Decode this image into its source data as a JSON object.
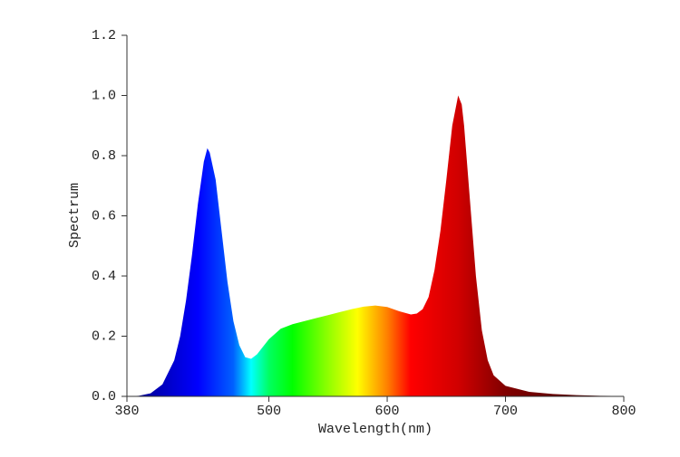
{
  "chart_data": {
    "type": "area",
    "x_label": "Wavelength(nm)",
    "y_label": "Spectrum",
    "x": [
      380,
      390,
      400,
      410,
      420,
      425,
      430,
      435,
      440,
      445,
      448,
      450,
      455,
      460,
      465,
      470,
      475,
      480,
      485,
      490,
      495,
      500,
      510,
      520,
      530,
      540,
      550,
      560,
      570,
      580,
      590,
      600,
      610,
      620,
      625,
      630,
      635,
      640,
      645,
      650,
      655,
      660,
      663,
      665,
      670,
      675,
      680,
      685,
      690,
      700,
      720,
      740,
      760,
      780,
      800
    ],
    "values": [
      0,
      0.002,
      0.01,
      0.04,
      0.12,
      0.2,
      0.32,
      0.47,
      0.64,
      0.78,
      0.825,
      0.81,
      0.72,
      0.55,
      0.38,
      0.25,
      0.17,
      0.13,
      0.125,
      0.14,
      0.165,
      0.19,
      0.225,
      0.24,
      0.25,
      0.26,
      0.27,
      0.28,
      0.29,
      0.298,
      0.302,
      0.297,
      0.283,
      0.272,
      0.275,
      0.29,
      0.33,
      0.42,
      0.55,
      0.72,
      0.9,
      1.0,
      0.97,
      0.9,
      0.65,
      0.4,
      0.22,
      0.12,
      0.07,
      0.035,
      0.015,
      0.008,
      0.004,
      0.002,
      0.001
    ],
    "xlim": [
      380,
      800
    ],
    "xticks": [
      380,
      500,
      600,
      700,
      800
    ],
    "ylim": [
      0,
      1.2
    ],
    "yticks": [
      {
        "value": 0,
        "label": "0.0"
      },
      0.2,
      0.4,
      0.6,
      0.8,
      {
        "value": 1,
        "label": "1.0"
      },
      1.2
    ]
  }
}
